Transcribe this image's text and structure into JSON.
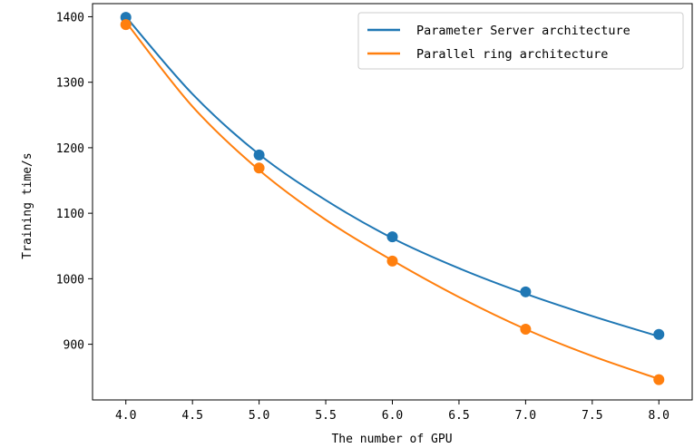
{
  "chart_data": {
    "type": "scatter",
    "title": "",
    "xlabel": "The number of GPU",
    "ylabel": "Training time/s",
    "xlim": [
      3.75,
      8.25
    ],
    "ylim": [
      815,
      1420
    ],
    "xticks": [
      "4.0",
      "4.5",
      "5.0",
      "5.5",
      "6.0",
      "6.5",
      "7.0",
      "7.5",
      "8.0"
    ],
    "yticks": [
      "900",
      "1000",
      "1100",
      "1200",
      "1300",
      "1400"
    ],
    "grid": false,
    "legend_position": "top-right",
    "fit_curve": "smooth fitted curve through points (x from 4 to 8)",
    "series": [
      {
        "name": "Parameter Server architecture",
        "color": "#1f77b4",
        "x": [
          4,
          5,
          6,
          7,
          8
        ],
        "y": [
          1399,
          1189,
          1064,
          980,
          915
        ],
        "curve": [
          [
            4.0,
            1400
          ],
          [
            4.5,
            1282
          ],
          [
            5.0,
            1190
          ],
          [
            5.5,
            1120
          ],
          [
            6.0,
            1062
          ],
          [
            6.5,
            1016
          ],
          [
            7.0,
            977
          ],
          [
            7.5,
            943
          ],
          [
            8.0,
            912
          ]
        ]
      },
      {
        "name": "Parallel ring architecture",
        "color": "#ff7f0e",
        "x": [
          4,
          5,
          6,
          7,
          8
        ],
        "y": [
          1388,
          1169,
          1027,
          923,
          846
        ],
        "curve": [
          [
            4.0,
            1392
          ],
          [
            4.5,
            1263
          ],
          [
            5.0,
            1166
          ],
          [
            5.5,
            1090
          ],
          [
            6.0,
            1028
          ],
          [
            6.5,
            972
          ],
          [
            7.0,
            923
          ],
          [
            7.5,
            882
          ],
          [
            8.0,
            847
          ]
        ]
      }
    ]
  }
}
